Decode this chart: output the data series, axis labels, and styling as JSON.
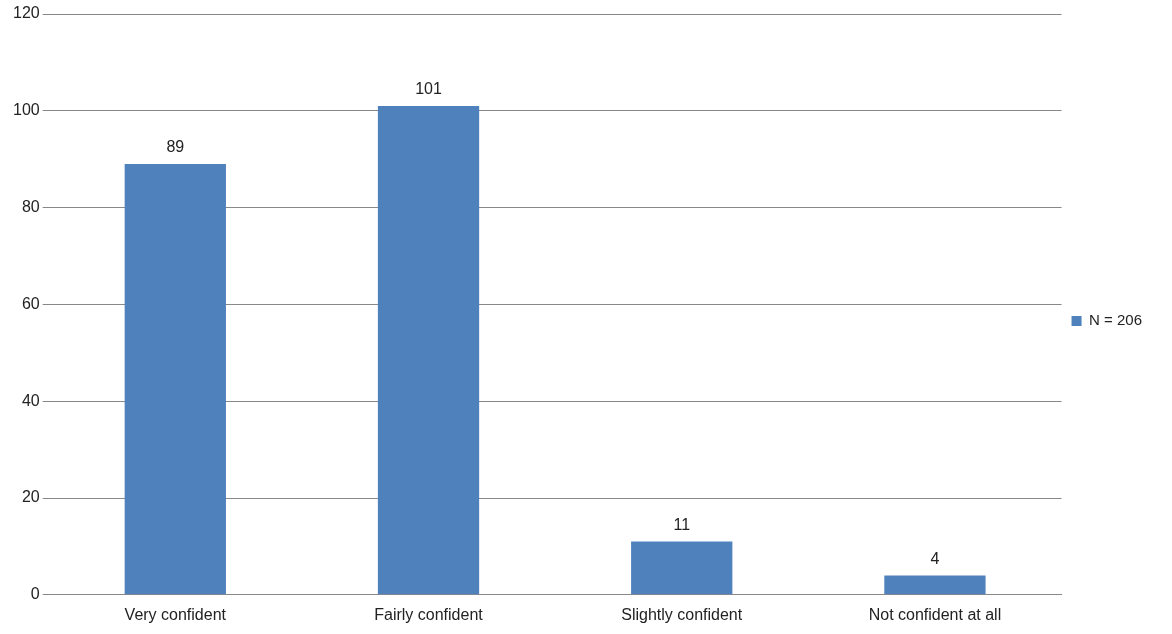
{
  "chart_data": {
    "type": "bar",
    "categories": [
      "Very confident",
      "Fairly confident",
      "Slightly confident",
      "Not confident at all"
    ],
    "series": [
      {
        "name": "N = 206",
        "color": "#4f81bd",
        "values": [
          89,
          101,
          11,
          4
        ]
      }
    ],
    "ylim": [
      0,
      120
    ],
    "yticks": [
      0,
      20,
      40,
      60,
      80,
      100,
      120
    ],
    "grid": "y",
    "legend": "right",
    "data_labels": true
  }
}
